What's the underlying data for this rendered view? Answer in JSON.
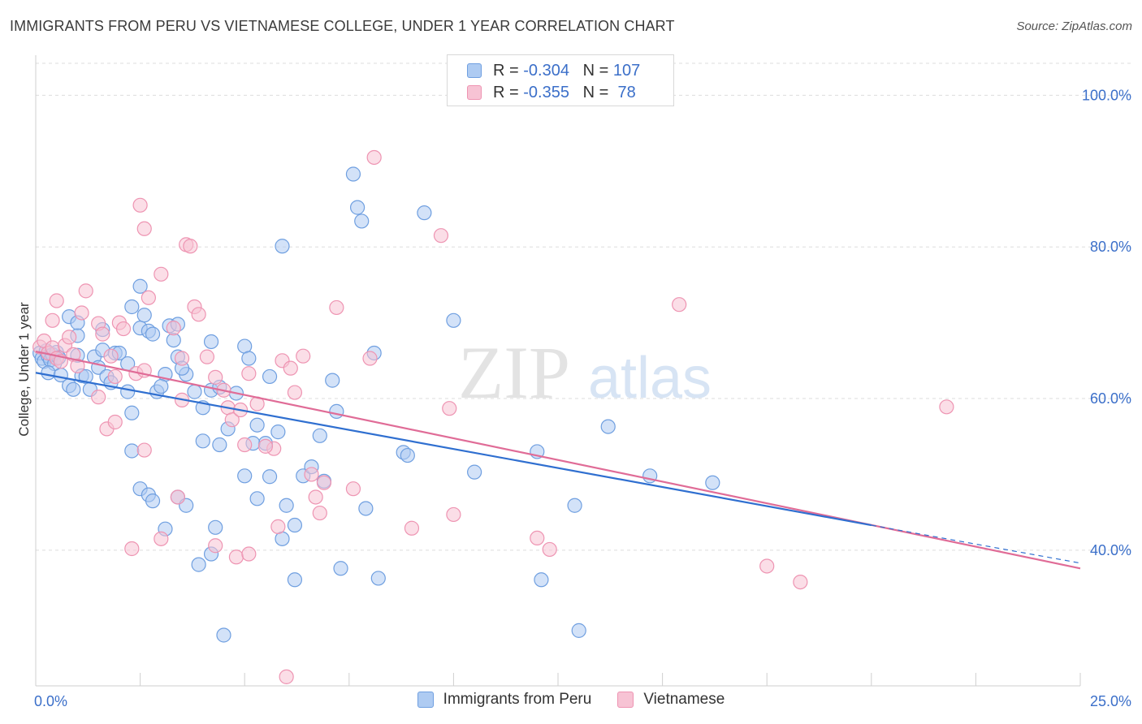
{
  "title": "IMMIGRANTS FROM PERU VS VIETNAMESE COLLEGE, UNDER 1 YEAR CORRELATION CHART",
  "source": "Source: ZipAtlas.com",
  "watermark": {
    "zip": "ZIP",
    "atlas": "atlas"
  },
  "legend": {
    "rows": [
      {
        "r_label": "R =",
        "r_value": "-0.304",
        "n_label": "N =",
        "n_value": "107",
        "color": "#7aa6e8"
      },
      {
        "r_label": "R =",
        "r_value": "-0.355",
        "n_label": "N =",
        "n_value": " 78",
        "color": "#f2a0bb"
      }
    ]
  },
  "colors": {
    "blue_fill": "#aecbf2",
    "blue_stroke": "#6f9fe0",
    "blue_line": "#2f6fd0",
    "pink_fill": "#f7c3d4",
    "pink_stroke": "#ee94b2",
    "pink_line": "#e06c97",
    "axis_label": "#3b6fc9",
    "grid": "#dddddd"
  },
  "chart_data": {
    "type": "scatter",
    "title": "IMMIGRANTS FROM PERU VS VIETNAMESE COLLEGE, UNDER 1 YEAR CORRELATION CHART",
    "xlabel": "",
    "ylabel": "College, Under 1 year",
    "xlim": [
      0,
      25
    ],
    "ylim": [
      22,
      104
    ],
    "x_tick_labels": [
      "0.0%",
      "25.0%"
    ],
    "y_ticks": [
      40,
      60,
      80,
      100
    ],
    "y_tick_labels": [
      "40.0%",
      "60.0%",
      "80.0%",
      "100.0%"
    ],
    "grid": true,
    "legend_position": "top-center",
    "series": [
      {
        "name": "Immigrants from Peru",
        "r": -0.304,
        "n": 107,
        "trend": {
          "x": [
            0,
            20
          ],
          "y": [
            63.4,
            43.3
          ]
        },
        "trend_dashed_extension": {
          "x": [
            20,
            25
          ],
          "y": [
            43.3,
            38.3
          ]
        },
        "points": [
          [
            0.1,
            66.0
          ],
          [
            0.15,
            65.3
          ],
          [
            0.2,
            64.9
          ],
          [
            0.25,
            66.3
          ],
          [
            0.3,
            65.6
          ],
          [
            0.35,
            65.1
          ],
          [
            0.4,
            65.8
          ],
          [
            0.45,
            64.6
          ],
          [
            0.5,
            66.1
          ],
          [
            0.55,
            65.4
          ],
          [
            0.3,
            63.4
          ],
          [
            0.6,
            63.1
          ],
          [
            0.8,
            61.7
          ],
          [
            0.9,
            61.2
          ],
          [
            1.0,
            68.3
          ],
          [
            1.0,
            65.7
          ],
          [
            1.1,
            63.0
          ],
          [
            1.2,
            62.9
          ],
          [
            1.3,
            61.2
          ],
          [
            1.4,
            65.5
          ],
          [
            1.5,
            64.1
          ],
          [
            1.6,
            66.4
          ],
          [
            1.7,
            62.9
          ],
          [
            1.8,
            62.1
          ],
          [
            1.9,
            66.0
          ],
          [
            2.0,
            66.0
          ],
          [
            2.2,
            64.6
          ],
          [
            2.3,
            72.1
          ],
          [
            2.5,
            69.3
          ],
          [
            2.6,
            71.0
          ],
          [
            2.7,
            68.9
          ],
          [
            2.8,
            68.5
          ],
          [
            3.2,
            69.6
          ],
          [
            3.3,
            67.7
          ],
          [
            3.4,
            69.8
          ],
          [
            0.8,
            70.8
          ],
          [
            1.0,
            70.0
          ],
          [
            1.6,
            69.1
          ],
          [
            2.5,
            74.8
          ],
          [
            2.2,
            60.9
          ],
          [
            2.3,
            58.1
          ],
          [
            2.9,
            60.9
          ],
          [
            3.1,
            63.2
          ],
          [
            3.0,
            61.6
          ],
          [
            3.4,
            65.5
          ],
          [
            3.6,
            63.2
          ],
          [
            4.2,
            61.1
          ],
          [
            4.4,
            61.5
          ],
          [
            4.2,
            67.5
          ],
          [
            3.8,
            60.9
          ],
          [
            4.0,
            58.8
          ],
          [
            4.6,
            56.0
          ],
          [
            4.4,
            53.9
          ],
          [
            5.5,
            54.1
          ],
          [
            5.2,
            54.1
          ],
          [
            5.3,
            56.5
          ],
          [
            5.0,
            49.8
          ],
          [
            5.8,
            55.6
          ],
          [
            6.8,
            55.1
          ],
          [
            6.0,
            45.9
          ],
          [
            2.3,
            53.1
          ],
          [
            2.5,
            48.1
          ],
          [
            2.7,
            47.3
          ],
          [
            2.8,
            46.5
          ],
          [
            3.1,
            42.8
          ],
          [
            3.4,
            47.0
          ],
          [
            3.6,
            45.9
          ],
          [
            3.9,
            38.1
          ],
          [
            4.0,
            54.4
          ],
          [
            4.2,
            39.5
          ],
          [
            4.3,
            43.0
          ],
          [
            4.5,
            28.8
          ],
          [
            4.8,
            60.7
          ],
          [
            5.0,
            66.9
          ],
          [
            5.1,
            65.3
          ],
          [
            5.3,
            46.8
          ],
          [
            5.6,
            62.9
          ],
          [
            5.9,
            41.5
          ],
          [
            6.2,
            36.1
          ],
          [
            6.2,
            43.3
          ],
          [
            6.4,
            49.8
          ],
          [
            6.6,
            51.0
          ],
          [
            6.9,
            49.1
          ],
          [
            7.1,
            62.4
          ],
          [
            7.2,
            58.3
          ],
          [
            7.3,
            37.6
          ],
          [
            7.9,
            45.5
          ],
          [
            8.1,
            66.0
          ],
          [
            8.2,
            36.3
          ],
          [
            8.8,
            52.9
          ],
          [
            8.9,
            52.5
          ],
          [
            9.3,
            84.5
          ],
          [
            10.0,
            70.3
          ],
          [
            10.5,
            50.3
          ],
          [
            12.0,
            53.0
          ],
          [
            12.1,
            36.1
          ],
          [
            12.9,
            45.9
          ],
          [
            13.0,
            29.4
          ],
          [
            13.7,
            56.3
          ],
          [
            14.7,
            49.8
          ],
          [
            16.2,
            48.9
          ],
          [
            7.6,
            89.6
          ],
          [
            7.7,
            85.2
          ],
          [
            7.8,
            83.4
          ],
          [
            5.9,
            80.1
          ],
          [
            5.6,
            49.7
          ],
          [
            3.5,
            64.0
          ]
        ]
      },
      {
        "name": "Vietnamese",
        "r": -0.355,
        "n": 78,
        "trend": {
          "x": [
            0,
            25
          ],
          "y": [
            66.2,
            37.6
          ]
        },
        "points": [
          [
            0.1,
            66.8
          ],
          [
            0.2,
            67.6
          ],
          [
            0.3,
            66.0
          ],
          [
            0.4,
            66.7
          ],
          [
            0.5,
            65.3
          ],
          [
            0.6,
            64.9
          ],
          [
            0.7,
            67.0
          ],
          [
            0.8,
            68.1
          ],
          [
            0.9,
            65.8
          ],
          [
            1.0,
            64.3
          ],
          [
            0.4,
            70.3
          ],
          [
            0.5,
            72.9
          ],
          [
            1.1,
            71.3
          ],
          [
            1.2,
            74.2
          ],
          [
            1.5,
            69.9
          ],
          [
            1.6,
            68.5
          ],
          [
            1.8,
            65.6
          ],
          [
            1.9,
            62.9
          ],
          [
            2.0,
            70.0
          ],
          [
            2.1,
            69.2
          ],
          [
            2.4,
            63.3
          ],
          [
            2.5,
            85.5
          ],
          [
            2.6,
            82.4
          ],
          [
            2.7,
            73.3
          ],
          [
            3.0,
            76.4
          ],
          [
            3.3,
            69.3
          ],
          [
            3.5,
            59.8
          ],
          [
            3.5,
            65.3
          ],
          [
            3.6,
            80.3
          ],
          [
            3.7,
            80.1
          ],
          [
            3.8,
            72.1
          ],
          [
            3.9,
            71.1
          ],
          [
            4.1,
            65.5
          ],
          [
            4.3,
            62.8
          ],
          [
            4.5,
            61.1
          ],
          [
            4.6,
            58.8
          ],
          [
            4.7,
            57.2
          ],
          [
            4.9,
            58.5
          ],
          [
            5.0,
            53.9
          ],
          [
            5.1,
            63.3
          ],
          [
            5.3,
            59.3
          ],
          [
            5.7,
            53.4
          ],
          [
            5.8,
            43.1
          ],
          [
            5.9,
            65.0
          ],
          [
            6.1,
            64.0
          ],
          [
            6.2,
            60.8
          ],
          [
            6.4,
            65.6
          ],
          [
            6.6,
            50.0
          ],
          [
            6.7,
            47.0
          ],
          [
            6.8,
            44.9
          ],
          [
            6.9,
            48.9
          ],
          [
            7.2,
            72.0
          ],
          [
            7.6,
            48.1
          ],
          [
            8.0,
            65.3
          ],
          [
            8.1,
            91.8
          ],
          [
            9.0,
            42.9
          ],
          [
            9.7,
            81.5
          ],
          [
            9.9,
            58.7
          ],
          [
            10.0,
            44.7
          ],
          [
            12.0,
            41.6
          ],
          [
            12.3,
            40.1
          ],
          [
            15.4,
            72.4
          ],
          [
            17.5,
            37.9
          ],
          [
            18.3,
            35.8
          ],
          [
            21.8,
            58.9
          ],
          [
            1.5,
            60.2
          ],
          [
            1.7,
            56.0
          ],
          [
            1.9,
            56.9
          ],
          [
            2.6,
            53.2
          ],
          [
            2.3,
            40.2
          ],
          [
            3.0,
            41.5
          ],
          [
            3.4,
            47.0
          ],
          [
            4.3,
            40.6
          ],
          [
            4.8,
            39.1
          ],
          [
            5.1,
            39.5
          ],
          [
            5.5,
            53.7
          ],
          [
            6.0,
            23.3
          ],
          [
            2.6,
            63.7
          ]
        ]
      }
    ]
  }
}
